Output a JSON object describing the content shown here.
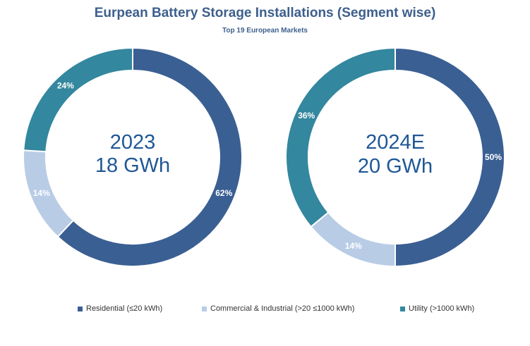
{
  "colors": {
    "residential": "#3a5f93",
    "commercial": "#b8cce6",
    "utility": "#33879e",
    "title": "#3d5f8d",
    "center_text": "#1f5796"
  },
  "chart_data": {
    "type": "pie",
    "title": "Eurpean Battery Storage Installations (Segment wise)",
    "subtitle": "Top 19 European Markets",
    "legend": [
      {
        "label": "Residential (≤20 kWh)",
        "key": "residential"
      },
      {
        "label": "Commercial & Industrial (>20 ≤1000 kWh)",
        "key": "commercial"
      },
      {
        "label": "Utility (>1000 kWh)",
        "key": "utility"
      }
    ],
    "charts": [
      {
        "year": "2023",
        "total": "18 GWh",
        "slices": [
          {
            "key": "residential",
            "value": 62,
            "label": "62%"
          },
          {
            "key": "commercial",
            "value": 14,
            "label": "14%"
          },
          {
            "key": "utility",
            "value": 24,
            "label": "24%"
          }
        ]
      },
      {
        "year": "2024E",
        "total": "20 GWh",
        "slices": [
          {
            "key": "residential",
            "value": 50,
            "label": "50%"
          },
          {
            "key": "commercial",
            "value": 14,
            "label": "14%"
          },
          {
            "key": "utility",
            "value": 36,
            "label": "36%"
          }
        ]
      }
    ]
  }
}
